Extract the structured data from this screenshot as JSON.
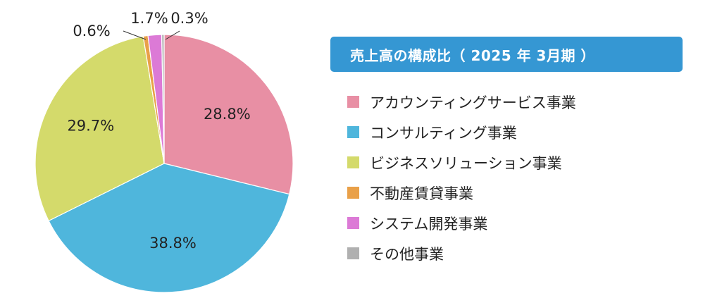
{
  "chart_data": {
    "type": "pie",
    "title": "売上高の構成比（ 2025 年 3月期 ）",
    "start_angle_deg": 0,
    "direction": "clockwise",
    "slices": [
      {
        "name": "アカウンティングサービス事業",
        "value": 28.8,
        "label": "28.8%",
        "color": "#e88fa4"
      },
      {
        "name": "コンサルティング事業",
        "value": 38.8,
        "label": "38.8%",
        "color": "#4fb6dc"
      },
      {
        "name": "ビジネスソリューション事業",
        "value": 29.7,
        "label": "29.7%",
        "color": "#d4da6b"
      },
      {
        "name": "不動産賃貸事業",
        "value": 0.6,
        "label": "0.6%",
        "color": "#e9a048"
      },
      {
        "name": "システム開発事業",
        "value": 1.7,
        "label": "1.7%",
        "color": "#dc7ad6"
      },
      {
        "name": "その他事業",
        "value": 0.3,
        "label": "0.3%",
        "color": "#b0b0b0"
      }
    ]
  }
}
